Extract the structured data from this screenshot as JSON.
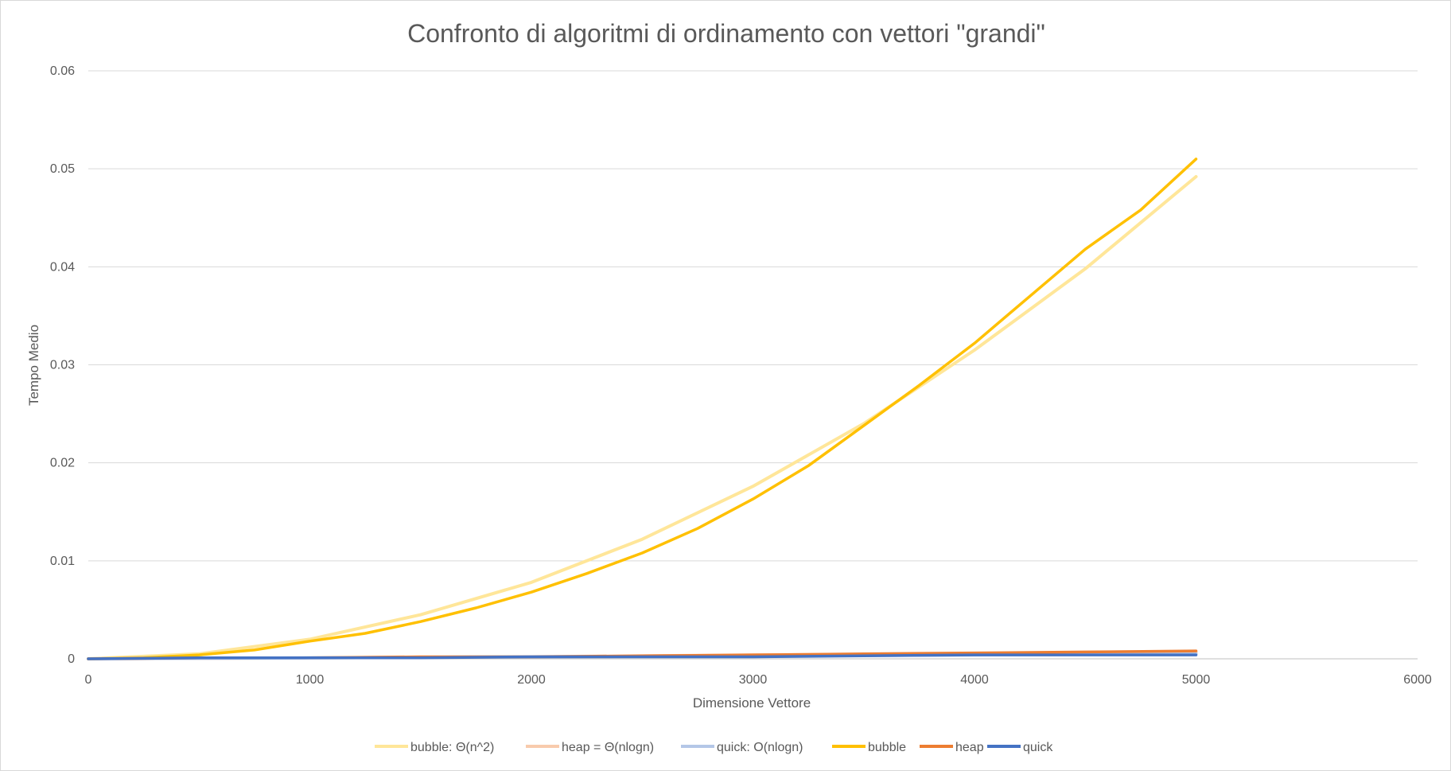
{
  "chart_data": {
    "type": "line",
    "title": "Confronto di algoritmi di ordinamento con vettori \"grandi\"",
    "xlabel": "Dimensione Vettore",
    "ylabel": "Tempo Medio",
    "xlim": [
      0,
      6000
    ],
    "ylim": [
      0,
      0.06
    ],
    "x_ticks": [
      "0",
      "1000",
      "2000",
      "3000",
      "4000",
      "5000",
      "6000"
    ],
    "y_ticks": [
      "0",
      "0.01",
      "0.02",
      "0.03",
      "0.04",
      "0.05",
      "0.06"
    ],
    "grid": "horizontal",
    "legend_position": "bottom",
    "series": [
      {
        "name": "bubble: Θ(n^2)",
        "color": "#ffe699",
        "style": "trend",
        "x": [
          0,
          500,
          1000,
          1500,
          2000,
          2500,
          3000,
          3500,
          4000,
          4500,
          5000
        ],
        "values": [
          0,
          0.0005,
          0.002,
          0.0045,
          0.0078,
          0.0122,
          0.0176,
          0.024,
          0.0315,
          0.0398,
          0.0492
        ]
      },
      {
        "name": "heap = Θ(nlogn)",
        "color": "#f8cbad",
        "style": "trend",
        "x": [
          0,
          1000,
          2000,
          3000,
          4000,
          5000
        ],
        "values": [
          0,
          0.0001,
          0.0002,
          0.0004,
          0.0005,
          0.0007
        ]
      },
      {
        "name": "quick: O(nlogn)",
        "color": "#b4c7e7",
        "style": "trend",
        "x": [
          0,
          1000,
          2000,
          3000,
          4000,
          5000
        ],
        "values": [
          0,
          0.0001,
          0.0002,
          0.0003,
          0.0004,
          0.0005
        ]
      },
      {
        "name": "bubble",
        "color": "#ffc000",
        "style": "data",
        "x": [
          0,
          250,
          500,
          750,
          1000,
          1250,
          1500,
          1750,
          2000,
          2250,
          2500,
          2750,
          3000,
          3250,
          3500,
          3750,
          4000,
          4250,
          4500,
          4750,
          5000
        ],
        "values": [
          0,
          0.0001,
          0.0004,
          0.0009,
          0.0018,
          0.0026,
          0.0038,
          0.0052,
          0.0068,
          0.0087,
          0.0108,
          0.0133,
          0.0163,
          0.0197,
          0.0238,
          0.0279,
          0.0322,
          0.037,
          0.0418,
          0.0458,
          0.051
        ]
      },
      {
        "name": "heap",
        "color": "#ed7d31",
        "style": "data",
        "x": [
          0,
          500,
          1000,
          1500,
          2000,
          2500,
          3000,
          3500,
          4000,
          4500,
          5000
        ],
        "values": [
          0,
          0.0001,
          0.0001,
          0.0002,
          0.0002,
          0.0003,
          0.0004,
          0.0005,
          0.0006,
          0.0007,
          0.0008
        ]
      },
      {
        "name": "quick",
        "color": "#4472c4",
        "style": "data",
        "x": [
          0,
          500,
          1000,
          1500,
          2000,
          2500,
          3000,
          3500,
          4000,
          4500,
          5000
        ],
        "values": [
          0,
          0.0001,
          0.0001,
          0.0001,
          0.0002,
          0.0002,
          0.0002,
          0.0003,
          0.0004,
          0.0004,
          0.0004
        ]
      }
    ]
  }
}
